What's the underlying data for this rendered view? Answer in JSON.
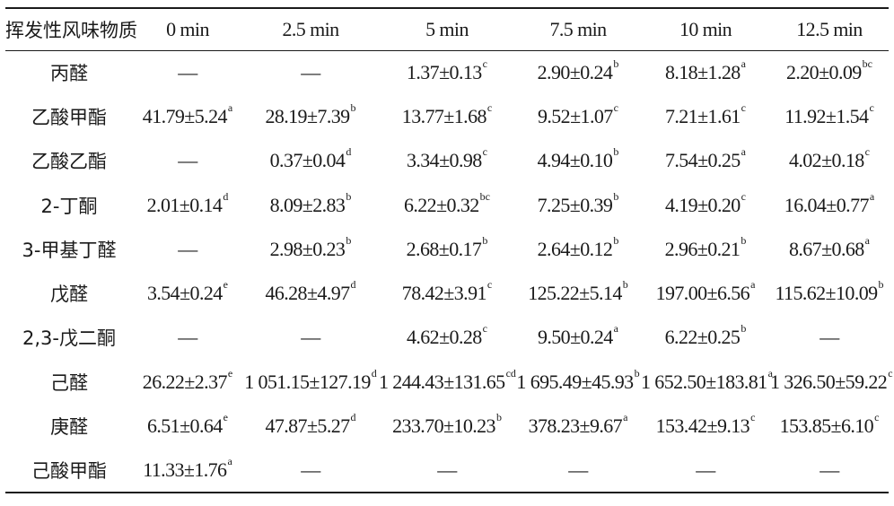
{
  "table": {
    "headers": [
      "挥发性风味物质",
      "0 min",
      "2.5 min",
      "5 min",
      "7.5 min",
      "10 min",
      "12.5 min"
    ],
    "rows": [
      {
        "name": "丙醛",
        "cells": [
          {
            "v": "—",
            "s": ""
          },
          {
            "v": "—",
            "s": ""
          },
          {
            "v": "1.37±0.13",
            "s": "c"
          },
          {
            "v": "2.90±0.24",
            "s": "b"
          },
          {
            "v": "8.18±1.28",
            "s": "a"
          },
          {
            "v": "2.20±0.09",
            "s": "bc"
          }
        ]
      },
      {
        "name": "乙酸甲酯",
        "cells": [
          {
            "v": "41.79±5.24",
            "s": "a"
          },
          {
            "v": "28.19±7.39",
            "s": "b"
          },
          {
            "v": "13.77±1.68",
            "s": "c"
          },
          {
            "v": "9.52±1.07",
            "s": "c"
          },
          {
            "v": "7.21±1.61",
            "s": "c"
          },
          {
            "v": "11.92±1.54",
            "s": "c"
          }
        ]
      },
      {
        "name": "乙酸乙酯",
        "cells": [
          {
            "v": "—",
            "s": ""
          },
          {
            "v": "0.37±0.04",
            "s": "d"
          },
          {
            "v": "3.34±0.98",
            "s": "c"
          },
          {
            "v": "4.94±0.10",
            "s": "b"
          },
          {
            "v": "7.54±0.25",
            "s": "a"
          },
          {
            "v": "4.02±0.18",
            "s": "c"
          }
        ]
      },
      {
        "name": "2-丁酮",
        "cells": [
          {
            "v": "2.01±0.14",
            "s": "d"
          },
          {
            "v": "8.09±2.83",
            "s": "b"
          },
          {
            "v": "6.22±0.32",
            "s": "bc"
          },
          {
            "v": "7.25±0.39",
            "s": "b"
          },
          {
            "v": "4.19±0.20",
            "s": "c"
          },
          {
            "v": "16.04±0.77",
            "s": "a"
          }
        ]
      },
      {
        "name": "3-甲基丁醛",
        "cells": [
          {
            "v": "—",
            "s": ""
          },
          {
            "v": "2.98±0.23",
            "s": "b"
          },
          {
            "v": "2.68±0.17",
            "s": "b"
          },
          {
            "v": "2.64±0.12",
            "s": "b"
          },
          {
            "v": "2.96±0.21",
            "s": "b"
          },
          {
            "v": "8.67±0.68",
            "s": "a"
          }
        ]
      },
      {
        "name": "戊醛",
        "cells": [
          {
            "v": "3.54±0.24",
            "s": "e"
          },
          {
            "v": "46.28±4.97",
            "s": "d"
          },
          {
            "v": "78.42±3.91",
            "s": "c"
          },
          {
            "v": "125.22±5.14",
            "s": "b"
          },
          {
            "v": "197.00±6.56",
            "s": "a"
          },
          {
            "v": "115.62±10.09",
            "s": "b"
          }
        ]
      },
      {
        "name": "2,3-戊二酮",
        "cells": [
          {
            "v": "—",
            "s": ""
          },
          {
            "v": "—",
            "s": ""
          },
          {
            "v": "4.62±0.28",
            "s": "c"
          },
          {
            "v": "9.50±0.24",
            "s": "a"
          },
          {
            "v": "6.22±0.25",
            "s": "b"
          },
          {
            "v": "—",
            "s": ""
          }
        ]
      },
      {
        "name": "己醛",
        "cells": [
          {
            "v": "26.22±2.37",
            "s": "e"
          },
          {
            "v": "1 051.15±127.19",
            "s": "d"
          },
          {
            "v": "1 244.43±131.65",
            "s": "cd"
          },
          {
            "v": "1 695.49±45.93",
            "s": "b"
          },
          {
            "v": "1 652.50±183.81",
            "s": "a"
          },
          {
            "v": "1 326.50±59.22",
            "s": "c"
          }
        ]
      },
      {
        "name": "庚醛",
        "cells": [
          {
            "v": "6.51±0.64",
            "s": "e"
          },
          {
            "v": "47.87±5.27",
            "s": "d"
          },
          {
            "v": "233.70±10.23",
            "s": "b"
          },
          {
            "v": "378.23±9.67",
            "s": "a"
          },
          {
            "v": "153.42±9.13",
            "s": "c"
          },
          {
            "v": "153.85±6.10",
            "s": "c"
          }
        ]
      },
      {
        "name": "己酸甲酯",
        "cells": [
          {
            "v": "11.33±1.76",
            "s": "a"
          },
          {
            "v": "—",
            "s": ""
          },
          {
            "v": "—",
            "s": ""
          },
          {
            "v": "—",
            "s": ""
          },
          {
            "v": "—",
            "s": ""
          },
          {
            "v": "—",
            "s": ""
          }
        ]
      }
    ]
  }
}
